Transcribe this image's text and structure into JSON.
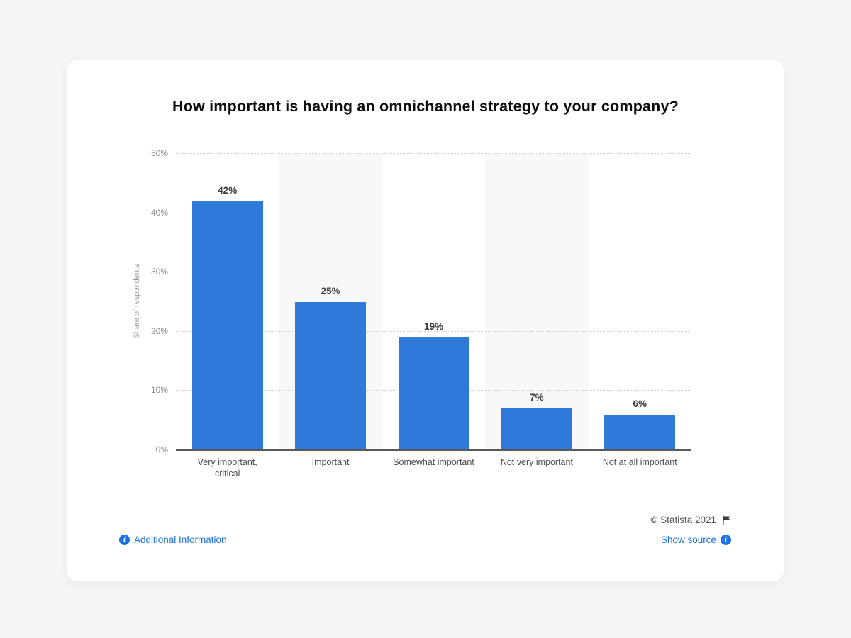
{
  "title": "How important is having an omnichannel strategy to your company?",
  "chart_data": {
    "type": "bar",
    "title": "How important is having an omnichannel strategy to your company?",
    "categories": [
      "Very important,\ncritical",
      "Important",
      "Somewhat important",
      "Not very important",
      "Not at all important"
    ],
    "values": [
      42,
      25,
      19,
      7,
      6
    ],
    "value_labels": [
      "42%",
      "25%",
      "19%",
      "7%",
      "6%"
    ],
    "xlabel": "",
    "ylabel": "Share of respondents",
    "ylim": [
      0,
      50
    ],
    "yticks": [
      0,
      10,
      20,
      30,
      40,
      50
    ],
    "ytick_labels": [
      "0%",
      "10%",
      "20%",
      "30%",
      "40%",
      "50%"
    ],
    "grid": "horizontal-dotted",
    "legend": "none",
    "bar_color": "#2f79da",
    "band_color": "#f8f8f9",
    "banded_column_indexes": [
      1,
      3
    ],
    "axis_line_color": "#59595b"
  },
  "footer": {
    "copyright": "© Statista 2021",
    "additional_information_label": "Additional Information",
    "show_source_label": "Show source",
    "info_icon_glyph": "i",
    "link_color": "#1a73e8",
    "flag_color": "#3c3c3e"
  }
}
